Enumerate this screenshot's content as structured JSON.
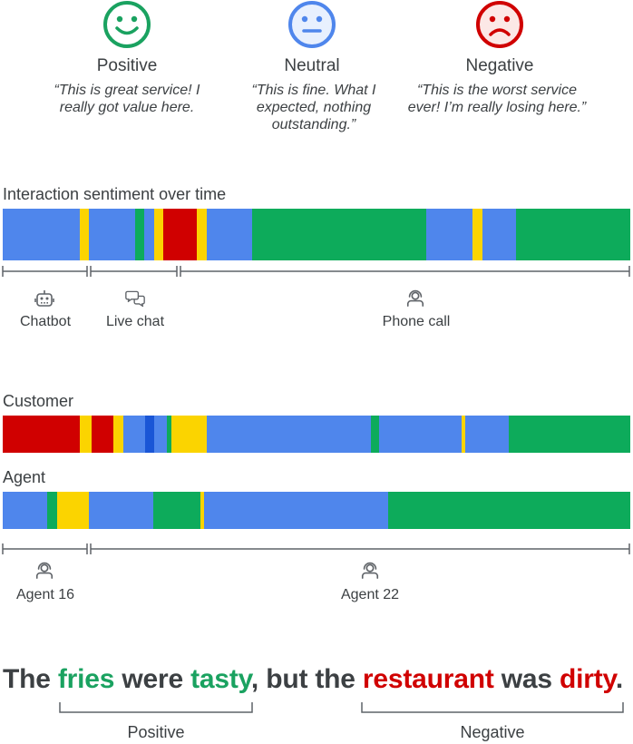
{
  "legend": {
    "positive": {
      "label": "Positive",
      "quote": "“This is great service! I really got value here.",
      "color": "#1aa260",
      "icon": "smile-icon"
    },
    "neutral": {
      "label": "Neutral",
      "quote": "“This is fine. What I expected, nothing outstanding.”",
      "color": "#4f86ec",
      "icon": "neutral-face-icon"
    },
    "negative": {
      "label": "Negative",
      "quote": "“This is the worst service ever! I’m really losing here.”",
      "color": "#d00000",
      "icon": "sad-face-icon"
    }
  },
  "colors": {
    "blue": "#4f86ec",
    "dark_blue": "#1a56d6",
    "green": "#0dab5b",
    "yellow": "#fbd400",
    "red": "#d00000",
    "line": "#5f6368"
  },
  "interaction": {
    "title": "Interaction sentiment over time",
    "channels": [
      {
        "label": "Chatbot",
        "icon": "robot-icon"
      },
      {
        "label": "Live chat",
        "icon": "chat-bubbles-icon"
      },
      {
        "label": "Phone call",
        "icon": "headset-icon"
      }
    ]
  },
  "customer": {
    "title": "Customer"
  },
  "agent": {
    "title": "Agent",
    "agents": [
      {
        "label": "Agent 16",
        "icon": "headset-icon"
      },
      {
        "label": "Agent 22",
        "icon": "headset-icon"
      }
    ]
  },
  "sentence": {
    "w1": "The ",
    "w2": "fries",
    "w3": " were ",
    "w4": "tasty",
    "w5": ", but the ",
    "w6": "restaurant",
    "w7": " was ",
    "w8": "dirty",
    "w9": ".",
    "positive_label": "Positive",
    "negative_label": "Negative"
  }
}
